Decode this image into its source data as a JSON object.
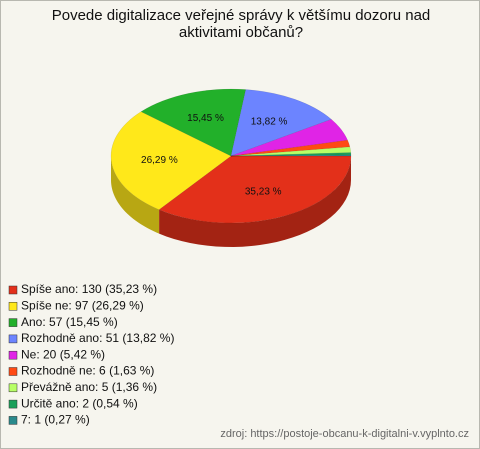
{
  "chart_data": {
    "type": "pie3d",
    "title": "Povede digitalizace veřejné správy k většímu dozoru nad aktivitami občanů?",
    "categories": [
      "Spíše ano: 130 (35,23 %)",
      "Spíše ne: 97 (26,29 %)",
      "Ano: 57 (15,45 %)",
      "Rozhodně ano: 51 (13,82 %)",
      "Ne: 20 (5,42 %)",
      "Rozhodně ne: 6 (1,63 %)",
      "Převážně ano: 5 (1,36 %)",
      "Určitě ano: 2 (0,54 %)",
      "7: 1 (0,27 %)"
    ],
    "values": [
      35.23,
      26.29,
      15.45,
      13.82,
      5.42,
      1.63,
      1.36,
      0.54,
      0.27
    ],
    "value_labels": [
      "35,23 %",
      "26,29 %",
      "15,45 %",
      "13,82 %",
      null,
      null,
      null,
      null,
      null
    ],
    "colors": [
      "#e3301a",
      "#ffe81a",
      "#22b02a",
      "#6c84ff",
      "#e024e6",
      "#ff4a14",
      "#b8ff66",
      "#1aa05a",
      "#2a8a8c"
    ],
    "legend": "bottom-left",
    "source": "zdroj: https://postoje-obcanu-k-digitalni-v.vyplnto.cz"
  }
}
